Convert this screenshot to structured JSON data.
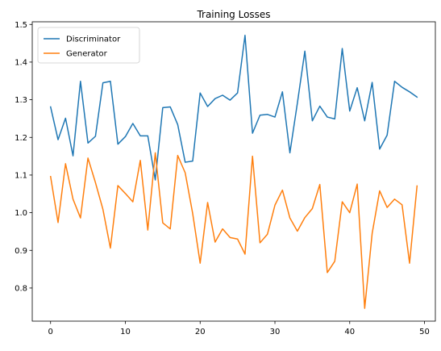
{
  "chart_data": {
    "type": "line",
    "title": "Training Losses",
    "xlabel": "",
    "ylabel": "",
    "xlim": [
      -2.45,
      51.45
    ],
    "ylim": [
      0.712,
      1.507
    ],
    "xticks": [
      0,
      10,
      20,
      30,
      40,
      50
    ],
    "xtick_labels": [
      "0",
      "10",
      "20",
      "30",
      "40",
      "50"
    ],
    "yticks": [
      0.8,
      0.9,
      1.0,
      1.1,
      1.2,
      1.3,
      1.4,
      1.5
    ],
    "ytick_labels": [
      "0.8",
      "0.9",
      "1.0",
      "1.1",
      "1.2",
      "1.3",
      "1.4",
      "1.5"
    ],
    "grid": false,
    "legend_position": "upper-left",
    "x": [
      0,
      1,
      2,
      3,
      4,
      5,
      6,
      7,
      8,
      9,
      10,
      11,
      12,
      13,
      14,
      15,
      16,
      17,
      18,
      19,
      20,
      21,
      22,
      23,
      24,
      25,
      26,
      27,
      28,
      29,
      30,
      31,
      32,
      33,
      34,
      35,
      36,
      37,
      38,
      39,
      40,
      41,
      42,
      43,
      44,
      45,
      46,
      47,
      48,
      49
    ],
    "series": [
      {
        "name": "Discriminator",
        "color": "#1f77b4",
        "values": [
          1.281,
          1.194,
          1.251,
          1.151,
          1.349,
          1.185,
          1.203,
          1.345,
          1.349,
          1.182,
          1.202,
          1.237,
          1.204,
          1.204,
          1.087,
          1.279,
          1.281,
          1.234,
          1.134,
          1.137,
          1.318,
          1.282,
          1.303,
          1.312,
          1.299,
          1.318,
          1.471,
          1.211,
          1.259,
          1.261,
          1.254,
          1.321,
          1.159,
          1.291,
          1.429,
          1.244,
          1.283,
          1.254,
          1.249,
          1.436,
          1.27,
          1.332,
          1.244,
          1.346,
          1.169,
          1.206,
          1.349,
          1.333,
          1.321,
          1.307
        ]
      },
      {
        "name": "Generator",
        "color": "#ff7f0e",
        "values": [
          1.096,
          0.974,
          1.13,
          1.036,
          0.986,
          1.145,
          1.08,
          1.009,
          0.906,
          1.072,
          1.051,
          1.029,
          1.139,
          0.954,
          1.159,
          0.973,
          0.957,
          1.152,
          1.106,
          0.998,
          0.866,
          1.027,
          0.922,
          0.957,
          0.934,
          0.93,
          0.89,
          1.15,
          0.92,
          0.943,
          1.02,
          1.06,
          0.986,
          0.951,
          0.987,
          1.011,
          1.075,
          0.841,
          0.871,
          1.029,
          1.0,
          1.076,
          0.746,
          0.945,
          1.058,
          1.014,
          1.036,
          1.021,
          0.866,
          1.071
        ]
      }
    ]
  }
}
